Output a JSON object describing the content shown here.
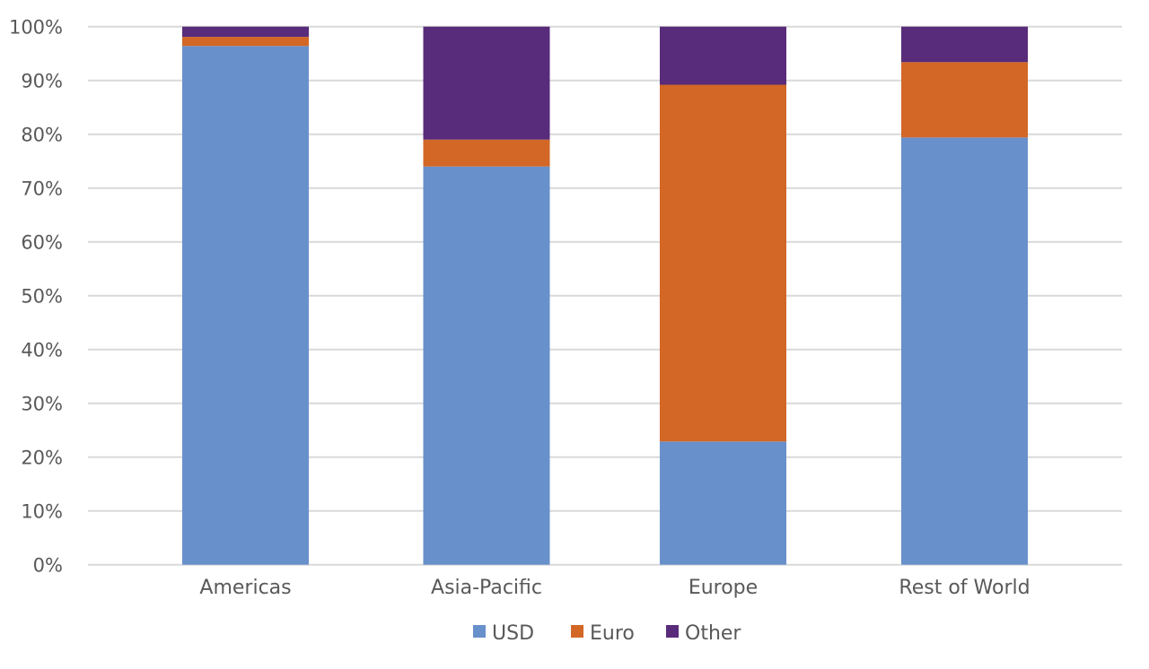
{
  "chart_data": {
    "type": "bar",
    "stacked": "percent",
    "title": "",
    "xlabel": "",
    "ylabel": "",
    "ylim": [
      0,
      100
    ],
    "yticks": [
      "0%",
      "10%",
      "20%",
      "30%",
      "40%",
      "50%",
      "60%",
      "70%",
      "80%",
      "90%",
      "100%"
    ],
    "grid": true,
    "legend_position": "bottom",
    "categories": [
      "Americas",
      "Asia-Pacific",
      "Europe",
      "Rest of World"
    ],
    "series": [
      {
        "name": "USD",
        "color": "#6890CB",
        "values": [
          96.4,
          74.0,
          22.9,
          79.4
        ]
      },
      {
        "name": "Euro",
        "color": "#D26726",
        "values": [
          1.7,
          5.0,
          66.3,
          14.0
        ]
      },
      {
        "name": "Other",
        "color": "#582C7A",
        "values": [
          1.9,
          21.0,
          10.8,
          6.6
        ]
      }
    ]
  }
}
